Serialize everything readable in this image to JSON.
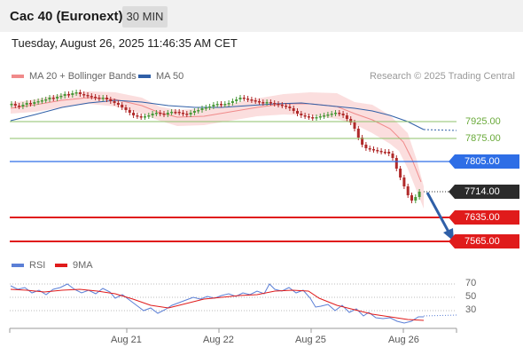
{
  "header": {
    "title": "Cac 40 (Euronext)",
    "interval": "30 MIN"
  },
  "datetime": "Tuesday, August 26, 2025 11:46:35 AM CET",
  "legend": {
    "bollinger": {
      "label": "MA 20 + Bollinger Bands",
      "color": "#f08a8a"
    },
    "ma50": {
      "label": "MA 50",
      "color": "#2f5fa7"
    },
    "copyright": "Research © 2025 Trading Central"
  },
  "levels": {
    "r2": "7925.00",
    "r1": "7875.00",
    "pivot": "7805.00",
    "last": "7714.00",
    "s1": "7635.00",
    "s2": "7565.00"
  },
  "rsi_panel": {
    "legend": {
      "rsi": "RSI",
      "ma": "9MA",
      "rsi_color": "#5b7fd6",
      "ma_color": "#e01b1b"
    },
    "levels": [
      "70",
      "50",
      "30"
    ]
  },
  "x_axis": [
    "Aug 21",
    "Aug 22",
    "Aug 25",
    "Aug 26"
  ],
  "colors": {
    "up": "#4a9a3a",
    "down": "#b02a2a",
    "arrow": "#2f5fa7",
    "pivot": "#2e6ee6",
    "support": "#e01b1b",
    "resistance": "#8cc26a"
  }
}
